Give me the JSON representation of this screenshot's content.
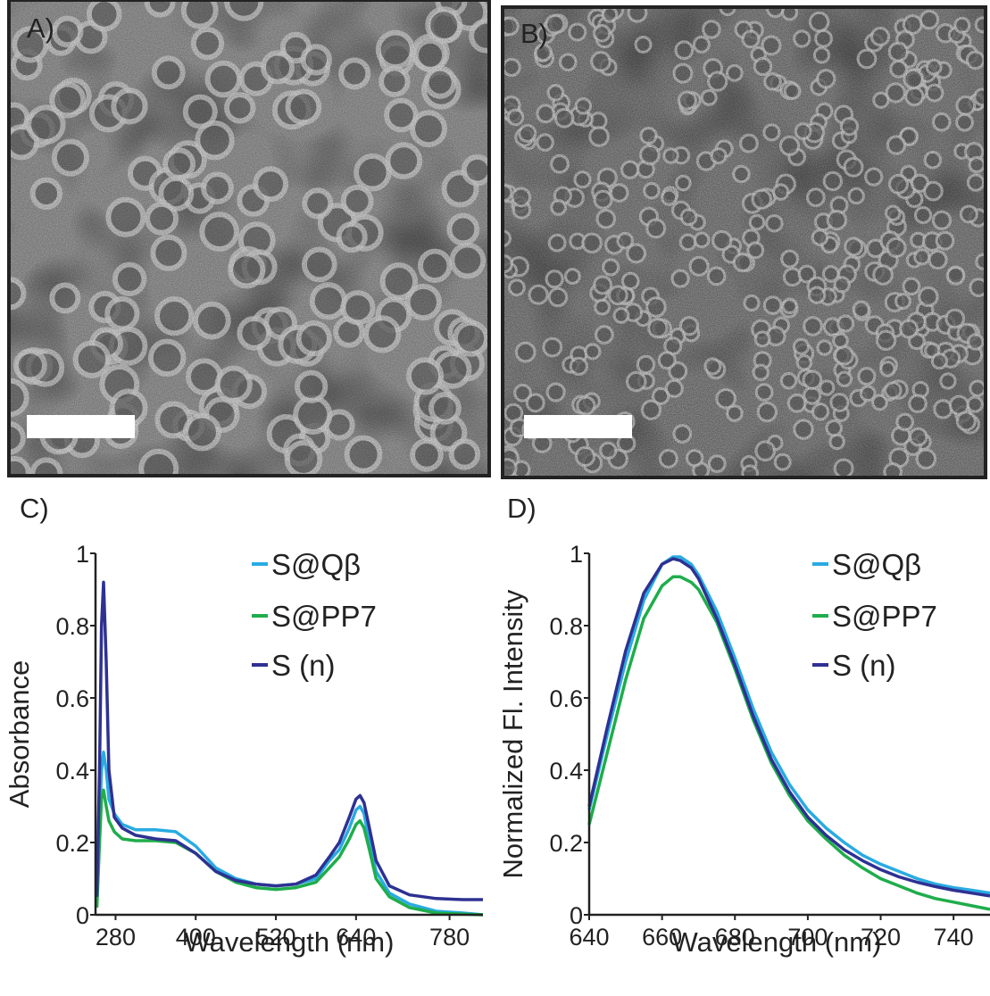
{
  "images": [
    {
      "label": "A)"
    },
    {
      "label": "B)"
    }
  ],
  "chart_data": [
    {
      "type": "line",
      "panel_label": "C)",
      "x_label": "Wavelength (nm)",
      "y_label": "Absorbance",
      "xlim": [
        250,
        830
      ],
      "ylim": [
        0,
        1
      ],
      "xticks": [
        280,
        400,
        520,
        640,
        780
      ],
      "yticks": [
        0,
        0.2,
        0.4,
        0.6,
        0.8,
        1
      ],
      "x": [
        252,
        256,
        259,
        262,
        266,
        270,
        278,
        290,
        310,
        340,
        370,
        400,
        430,
        460,
        490,
        520,
        550,
        580,
        600,
        615,
        630,
        640,
        646,
        652,
        660,
        670,
        690,
        720,
        760,
        800,
        830
      ],
      "series": [
        {
          "name": "S@Qβ",
          "color": "#29abe2",
          "values": [
            0.05,
            0.25,
            0.4,
            0.45,
            0.4,
            0.32,
            0.28,
            0.25,
            0.235,
            0.235,
            0.23,
            0.19,
            0.13,
            0.1,
            0.085,
            0.08,
            0.085,
            0.1,
            0.15,
            0.18,
            0.24,
            0.29,
            0.3,
            0.28,
            0.2,
            0.12,
            0.06,
            0.03,
            0.01,
            0.005,
            0
          ]
        },
        {
          "name": "S@PP7",
          "color": "#1fad4b",
          "values": [
            0.02,
            0.2,
            0.32,
            0.345,
            0.3,
            0.26,
            0.23,
            0.21,
            0.205,
            0.205,
            0.2,
            0.17,
            0.12,
            0.09,
            0.075,
            0.07,
            0.075,
            0.09,
            0.13,
            0.16,
            0.21,
            0.25,
            0.26,
            0.24,
            0.18,
            0.1,
            0.05,
            0.02,
            0.005,
            0.002,
            0
          ]
        },
        {
          "name": "S (n)",
          "color": "#2e3192",
          "values": [
            0.05,
            0.4,
            0.8,
            0.92,
            0.7,
            0.4,
            0.27,
            0.24,
            0.22,
            0.21,
            0.205,
            0.17,
            0.12,
            0.095,
            0.085,
            0.08,
            0.085,
            0.11,
            0.16,
            0.2,
            0.27,
            0.32,
            0.33,
            0.31,
            0.24,
            0.15,
            0.08,
            0.055,
            0.045,
            0.042,
            0.042
          ]
        }
      ]
    },
    {
      "type": "line",
      "panel_label": "D)",
      "x_label": "Wavelength (nm)",
      "y_label": "Normalized Fl. Intensity",
      "xlim": [
        640,
        750
      ],
      "ylim": [
        0,
        1
      ],
      "xticks": [
        640,
        660,
        680,
        700,
        720,
        740
      ],
      "yticks": [
        0,
        0.2,
        0.4,
        0.6,
        0.8,
        1
      ],
      "x": [
        640,
        645,
        650,
        655,
        660,
        663,
        665,
        668,
        670,
        675,
        680,
        685,
        690,
        695,
        700,
        705,
        710,
        715,
        720,
        725,
        730,
        735,
        740,
        745,
        750
      ],
      "series": [
        {
          "name": "S@Qβ",
          "color": "#29abe2",
          "values": [
            0.29,
            0.5,
            0.7,
            0.87,
            0.97,
            0.99,
            0.99,
            0.97,
            0.94,
            0.84,
            0.71,
            0.57,
            0.45,
            0.36,
            0.29,
            0.24,
            0.2,
            0.165,
            0.14,
            0.12,
            0.1,
            0.085,
            0.075,
            0.068,
            0.06
          ]
        },
        {
          "name": "S@PP7",
          "color": "#1fad4b",
          "values": [
            0.25,
            0.45,
            0.65,
            0.82,
            0.91,
            0.935,
            0.935,
            0.92,
            0.9,
            0.81,
            0.68,
            0.54,
            0.42,
            0.33,
            0.26,
            0.21,
            0.165,
            0.13,
            0.1,
            0.08,
            0.06,
            0.045,
            0.035,
            0.025,
            0.015
          ]
        },
        {
          "name": "S (n)",
          "color": "#2e3192",
          "values": [
            0.3,
            0.52,
            0.73,
            0.89,
            0.97,
            0.985,
            0.98,
            0.96,
            0.93,
            0.82,
            0.69,
            0.55,
            0.43,
            0.34,
            0.27,
            0.22,
            0.18,
            0.15,
            0.125,
            0.105,
            0.09,
            0.078,
            0.068,
            0.06,
            0.052
          ]
        }
      ]
    }
  ]
}
